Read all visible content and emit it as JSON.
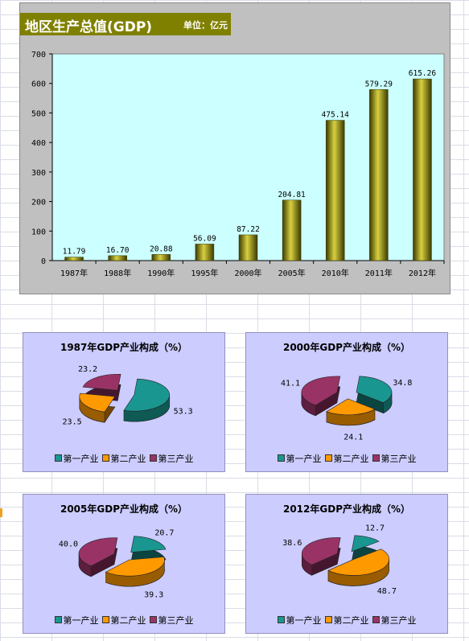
{
  "main_chart": {
    "title": "地区生产总值(GDP)",
    "unit": "单位：亿元"
  },
  "chart_data": [
    {
      "type": "bar",
      "title": "地区生产总值(GDP)",
      "unit_label": "单位：亿元",
      "categories": [
        "1987年",
        "1988年",
        "1990年",
        "1995年",
        "2000年",
        "2005年",
        "2010年",
        "2011年",
        "2012年"
      ],
      "values": [
        11.79,
        16.7,
        20.88,
        56.09,
        87.22,
        204.81,
        475.14,
        579.29,
        615.26
      ],
      "value_labels": [
        "11.79",
        "16.70",
        "20.88",
        "56.09",
        "87.22",
        "204.81",
        "475.14",
        "579.29",
        "615.26"
      ],
      "ylim": [
        0,
        700
      ],
      "yticks": [
        0,
        100,
        200,
        300,
        400,
        500,
        600,
        700
      ],
      "grid": false,
      "colors": {
        "bar_dark": "#3a3a00",
        "bar_mid": "#a8a000",
        "bar_light": "#d8d040",
        "plot_bg": "#ccffff",
        "panel_bg": "#c0c0c0",
        "title_bg": "#808000"
      }
    },
    {
      "type": "pie",
      "title": "1987年GDP产业构成（%）",
      "categories": [
        "第一产业",
        "第二产业",
        "第三产业"
      ],
      "values": [
        53.3,
        23.5,
        23.2
      ],
      "value_labels": [
        "53.3",
        "23.5",
        "23.2"
      ],
      "legend_position": "bottom"
    },
    {
      "type": "pie",
      "title": "2000年GDP产业构成（%）",
      "categories": [
        "第一产业",
        "第二产业",
        "第三产业"
      ],
      "values": [
        34.8,
        24.1,
        41.1
      ],
      "value_labels": [
        "34.8",
        "24.1",
        "41.1"
      ],
      "legend_position": "bottom"
    },
    {
      "type": "pie",
      "title": "2005年GDP产业构成（%）",
      "categories": [
        "第一产业",
        "第二产业",
        "第三产业"
      ],
      "values": [
        20.7,
        39.3,
        40.0
      ],
      "value_labels": [
        "20.7",
        "39.3",
        "40.0"
      ],
      "legend_position": "bottom"
    },
    {
      "type": "pie",
      "title": "2012年GDP产业构成（%）",
      "categories": [
        "第一产业",
        "第二产业",
        "第三产业"
      ],
      "values": [
        12.7,
        48.7,
        38.6
      ],
      "value_labels": [
        "12.7",
        "48.7",
        "38.6"
      ],
      "legend_position": "bottom"
    }
  ],
  "pie_colors": {
    "第一产业": "#1a9690",
    "第二产业": "#ff9900",
    "第三产业": "#993366"
  }
}
